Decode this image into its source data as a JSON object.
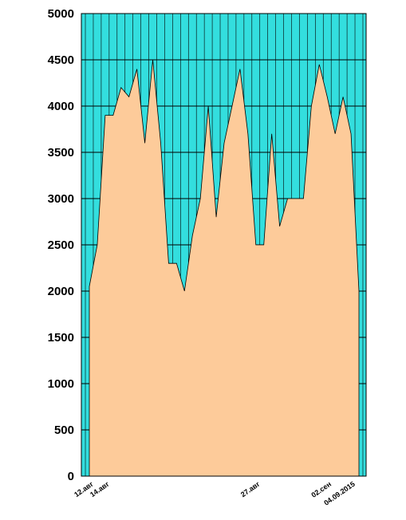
{
  "chart_data": {
    "type": "area",
    "title": "",
    "xlabel": "",
    "ylabel": "",
    "ylim": [
      0,
      5000
    ],
    "yticks": [
      0,
      500,
      1000,
      1500,
      2000,
      2500,
      3000,
      3500,
      4000,
      4500,
      5000
    ],
    "grid": true,
    "legend": "none",
    "colors": {
      "plot_background": "#33dede",
      "area_fill": "#fdcb9a",
      "grid_line": "#000000"
    },
    "x_labels": [
      {
        "index": 0,
        "label": "12.авг"
      },
      {
        "index": 2,
        "label": "14.авг"
      },
      {
        "index": 21,
        "label": "27.авг"
      },
      {
        "index": 30,
        "label": "02.сен"
      },
      {
        "index": 33,
        "label": "04.09.2015"
      }
    ],
    "values": [
      2050,
      2500,
      3900,
      3900,
      4200,
      4100,
      4400,
      3600,
      4500,
      3600,
      2300,
      2300,
      2000,
      2600,
      3000,
      4000,
      2800,
      3600,
      4000,
      4400,
      3700,
      2500,
      2500,
      3700,
      2700,
      3000,
      3000,
      3000,
      4000,
      4450,
      4100,
      3700,
      4100,
      3700,
      2000
    ]
  }
}
